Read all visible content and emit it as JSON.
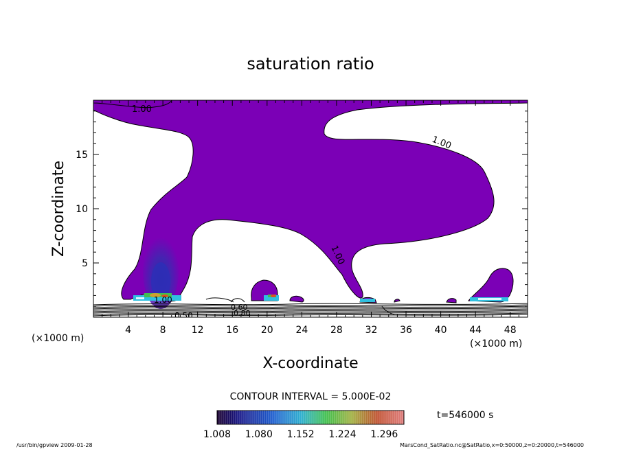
{
  "chart_data": {
    "type": "contour",
    "title": "saturation ratio",
    "xlabel": "X-coordinate",
    "ylabel": "Z-coordinate",
    "x_unit": "(×1000 m)",
    "z_unit": "(×1000 m)",
    "xlim": [
      0,
      50
    ],
    "ylim": [
      0,
      20
    ],
    "x_ticks": [
      "4",
      "8",
      "12",
      "16",
      "20",
      "24",
      "28",
      "32",
      "36",
      "40",
      "44",
      "48"
    ],
    "y_ticks": [
      "5",
      "10",
      "15"
    ],
    "contour_interval_text": "CONTOUR INTERVAL = 5.000E-02",
    "contour_labels": [
      "1.00",
      "1.00",
      "1.00",
      "1.00",
      "0.50",
      "0.60",
      "0.80"
    ],
    "colorbar": {
      "min": 1.008,
      "max": 1.33,
      "ticks": [
        "1.008",
        "1.080",
        "1.152",
        "1.224",
        "1.296"
      ]
    },
    "time_label": "t=546000 s",
    "fill_color": "#7b00b6",
    "footer_left": "/usr/bin/gpview   2009-01-28",
    "footer_right": "MarsCond_SatRatio.nc@SatRatio,x=0:50000,z=0:20000,t=546000"
  }
}
